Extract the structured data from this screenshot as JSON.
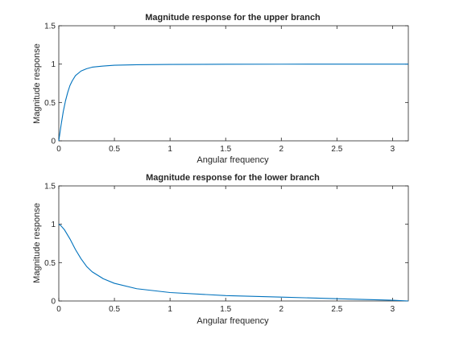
{
  "figure": {
    "background": "#ffffff",
    "axes_color": "#262626",
    "line_color": "#0072bd"
  },
  "chart_data": [
    {
      "type": "line",
      "title": "Magnitude response for the upper branch",
      "xlabel": "Angular frequency",
      "ylabel": "Magnitude response",
      "xlim": [
        0,
        3.1416
      ],
      "ylim": [
        0,
        1.5
      ],
      "xticks": [
        "0",
        "0.5",
        "1",
        "1.5",
        "2",
        "2.5",
        "3"
      ],
      "yticks": [
        "0",
        "0.5",
        "1",
        "1.5"
      ],
      "grid": false,
      "series": [
        {
          "x": [
            0,
            0.02,
            0.04,
            0.06,
            0.08,
            0.1,
            0.12,
            0.15,
            0.2,
            0.25,
            0.3,
            0.4,
            0.5,
            0.7,
            1.0,
            1.5,
            2.0,
            2.5,
            3.1416
          ],
          "y": [
            0,
            0.2,
            0.38,
            0.52,
            0.63,
            0.72,
            0.78,
            0.85,
            0.91,
            0.94,
            0.96,
            0.975,
            0.985,
            0.992,
            0.996,
            0.998,
            0.999,
            1.0,
            1.0
          ]
        }
      ]
    },
    {
      "type": "line",
      "title": "Magnitude response for the lower branch",
      "xlabel": "Angular frequency",
      "ylabel": "Magnitude response",
      "xlim": [
        0,
        3.1416
      ],
      "ylim": [
        0,
        1.5
      ],
      "xticks": [
        "0",
        "0.5",
        "1",
        "1.5",
        "2",
        "2.5",
        "3"
      ],
      "yticks": [
        "0",
        "0.5",
        "1",
        "1.5"
      ],
      "grid": false,
      "series": [
        {
          "x": [
            0,
            0.02,
            0.05,
            0.1,
            0.15,
            0.2,
            0.25,
            0.3,
            0.4,
            0.5,
            0.7,
            1.0,
            1.5,
            2.0,
            2.5,
            3.0,
            3.1416
          ],
          "y": [
            1.0,
            0.98,
            0.93,
            0.81,
            0.67,
            0.55,
            0.45,
            0.38,
            0.29,
            0.23,
            0.16,
            0.11,
            0.07,
            0.05,
            0.03,
            0.01,
            0.0
          ]
        }
      ]
    }
  ]
}
